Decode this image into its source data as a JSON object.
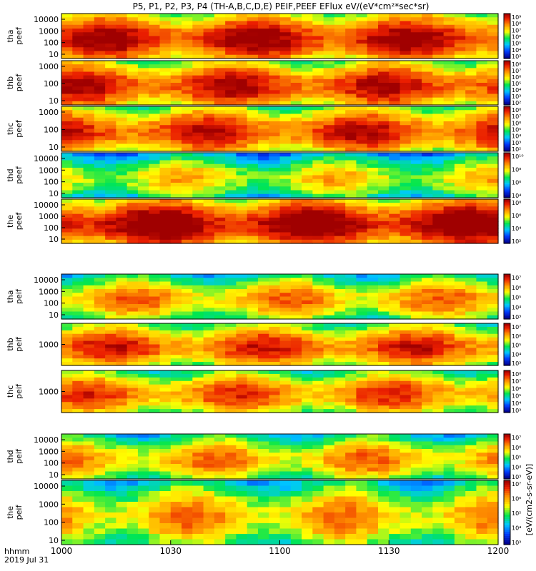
{
  "chart_data": {
    "type": "heatmap",
    "title": "P5, P1, P2, P3, P4 (TH-A,B,C,D,E) PEIF,PEEF EFlux eV/(eV*cm²*sec*sr)",
    "x_axis": {
      "ticks": [
        "1000",
        "1030",
        "1100",
        "1130",
        "1200"
      ],
      "corner_labels": [
        "hhmm",
        "2019 Jul 31"
      ]
    },
    "colorbar_label": "[eV/(cm2-s-sr-eV)]",
    "panels": [
      {
        "id": "tha_peef",
        "ylabel": [
          "tha",
          "peef"
        ],
        "yticks": [
          "10000",
          "1000",
          "100",
          "10"
        ],
        "colorbar_ticks": [
          "10⁹",
          "10⁸",
          "10⁷",
          "10⁶",
          "10⁵",
          "10⁴",
          "10³"
        ],
        "mean_level": 0.72
      },
      {
        "id": "thb_peef",
        "ylabel": [
          "thb",
          "peef"
        ],
        "yticks": [
          "1000",
          "100",
          "10"
        ],
        "colorbar_ticks": [
          "10⁸",
          "10⁷",
          "10⁶",
          "10⁵",
          "10⁴",
          "10³",
          "10²"
        ],
        "mean_level": 0.68
      },
      {
        "id": "thc_peef",
        "ylabel": [
          "thc",
          "peef"
        ],
        "yticks": [
          "1000",
          "100",
          "10"
        ],
        "colorbar_ticks": [
          "10⁸",
          "10⁷",
          "10⁶",
          "10⁵",
          "10⁴",
          "10³",
          "10²"
        ],
        "mean_level": 0.66
      },
      {
        "id": "thd_peef",
        "ylabel": [
          "thd",
          "peef"
        ],
        "yticks": [
          "10000",
          "1000",
          "100",
          "10"
        ],
        "colorbar_ticks": [
          "10¹⁰",
          "10⁸",
          "10⁶",
          "10⁴"
        ],
        "mean_level": 0.4
      },
      {
        "id": "the_peef",
        "ylabel": [
          "the",
          "peef"
        ],
        "yticks": [
          "10000",
          "1000",
          "100",
          "10"
        ],
        "colorbar_ticks": [
          "10⁸",
          "10⁶",
          "10⁴",
          "10²"
        ],
        "mean_level": 0.78
      },
      {
        "id": "tha_peif",
        "ylabel": [
          "tha",
          "peif"
        ],
        "yticks": [
          "10000",
          "1000",
          "100",
          "10"
        ],
        "colorbar_ticks": [
          "10⁷",
          "10⁶",
          "10⁵",
          "10⁴",
          "10³"
        ],
        "mean_level": 0.5
      },
      {
        "id": "thb_peif",
        "ylabel": [
          "thb",
          "peif"
        ],
        "yticks": [
          "1000"
        ],
        "colorbar_ticks": [
          "10⁷",
          "10⁶",
          "10⁵",
          "10⁴",
          "10³"
        ],
        "mean_level": 0.62
      },
      {
        "id": "thc_peif",
        "ylabel": [
          "thc",
          "peif"
        ],
        "yticks": [
          "1000"
        ],
        "colorbar_ticks": [
          "10⁸",
          "10⁷",
          "10⁶",
          "10⁵",
          "10⁴",
          "10³"
        ],
        "mean_level": 0.58
      },
      {
        "id": "thd_peif",
        "ylabel": [
          "thd",
          "peif"
        ],
        "yticks": [
          "10000",
          "1000",
          "100",
          "10"
        ],
        "colorbar_ticks": [
          "10⁷",
          "10⁶",
          "10⁵",
          "10⁴",
          "10³"
        ],
        "mean_level": 0.5
      },
      {
        "id": "the_peif",
        "ylabel": [
          "the",
          "peif"
        ],
        "yticks": [
          "10000",
          "1000",
          "100",
          "10"
        ],
        "colorbar_ticks": [
          "10⁷",
          "10⁶",
          "10⁵",
          "10⁴",
          "10³"
        ],
        "mean_level": 0.48
      }
    ]
  }
}
